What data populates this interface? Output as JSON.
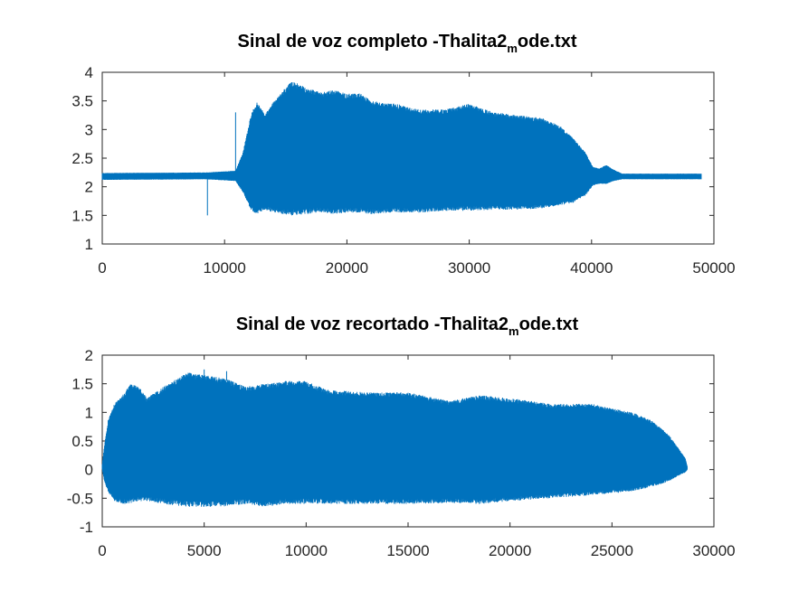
{
  "chart_data": [
    {
      "type": "area",
      "title": "Sinal de voz completo -Thalita2",
      "title_subscript": "m",
      "title_suffix": "ode.txt",
      "xlim": [
        0,
        50000
      ],
      "ylim": [
        1,
        4
      ],
      "x_ticks": [
        "0",
        "10000",
        "20000",
        "30000",
        "40000",
        "50000"
      ],
      "y_ticks": [
        "1",
        "1.5",
        "2",
        "2.5",
        "3",
        "3.5",
        "4"
      ],
      "color": "#0072BD",
      "envelope": {
        "x": [
          0,
          8500,
          10900,
          11500,
          12200,
          12700,
          13300,
          14000,
          15500,
          16500,
          18000,
          19000,
          20000,
          21000,
          22000,
          24000,
          26000,
          28000,
          30000,
          32000,
          34000,
          36000,
          37500,
          38500,
          39500,
          40100,
          40600,
          41200,
          41800,
          42500,
          49000
        ],
        "upper": [
          2.24,
          2.25,
          2.28,
          2.6,
          3.3,
          3.5,
          3.25,
          3.5,
          3.85,
          3.75,
          3.65,
          3.7,
          3.62,
          3.65,
          3.5,
          3.45,
          3.35,
          3.35,
          3.45,
          3.3,
          3.25,
          3.2,
          3.05,
          2.85,
          2.6,
          2.35,
          2.32,
          2.38,
          2.3,
          2.23,
          2.23
        ],
        "lower": [
          2.12,
          2.13,
          2.1,
          1.9,
          1.58,
          1.52,
          1.6,
          1.55,
          1.5,
          1.52,
          1.55,
          1.52,
          1.55,
          1.55,
          1.52,
          1.55,
          1.55,
          1.58,
          1.58,
          1.6,
          1.6,
          1.62,
          1.68,
          1.72,
          1.85,
          2.02,
          2.05,
          2.05,
          2.1,
          2.13,
          2.13
        ]
      },
      "spikes": [
        {
          "x": 8600,
          "y0": 2.15,
          "y1": 1.5
        },
        {
          "x": 10900,
          "y0": 2.25,
          "y1": 3.3
        }
      ]
    },
    {
      "type": "area",
      "title": "Sinal de voz recortado -Thalita2",
      "title_subscript": "m",
      "title_suffix": "ode.txt",
      "xlim": [
        0,
        30000
      ],
      "ylim": [
        -1,
        2
      ],
      "x_ticks": [
        "0",
        "5000",
        "10000",
        "15000",
        "20000",
        "25000",
        "30000"
      ],
      "y_ticks": [
        "-1",
        "-0.5",
        "0",
        "0.5",
        "1",
        "1.5",
        "2"
      ],
      "color": "#0072BD",
      "envelope": {
        "x": [
          0,
          100,
          300,
          600,
          1000,
          1400,
          1800,
          2200,
          3000,
          4200,
          5000,
          6000,
          7000,
          8000,
          9000,
          10000,
          11000,
          13000,
          15000,
          17000,
          18500,
          20000,
          22000,
          24000,
          26000,
          27000,
          27800,
          28300,
          28600,
          28700
        ],
        "upper": [
          0.1,
          0.4,
          0.9,
          1.15,
          1.3,
          1.5,
          1.45,
          1.25,
          1.45,
          1.7,
          1.65,
          1.6,
          1.45,
          1.5,
          1.55,
          1.55,
          1.4,
          1.35,
          1.35,
          1.2,
          1.3,
          1.25,
          1.15,
          1.15,
          1.0,
          0.85,
          0.6,
          0.35,
          0.2,
          0.05
        ],
        "lower": [
          0.0,
          -0.2,
          -0.4,
          -0.55,
          -0.6,
          -0.6,
          -0.55,
          -0.55,
          -0.6,
          -0.65,
          -0.65,
          -0.65,
          -0.6,
          -0.65,
          -0.6,
          -0.6,
          -0.6,
          -0.6,
          -0.6,
          -0.58,
          -0.6,
          -0.55,
          -0.5,
          -0.45,
          -0.38,
          -0.3,
          -0.2,
          -0.1,
          -0.05,
          0.0
        ]
      },
      "spikes": [
        {
          "x": 5000,
          "y0": 1.6,
          "y1": 1.75
        },
        {
          "x": 6100,
          "y0": 1.55,
          "y1": 1.72
        }
      ]
    }
  ]
}
